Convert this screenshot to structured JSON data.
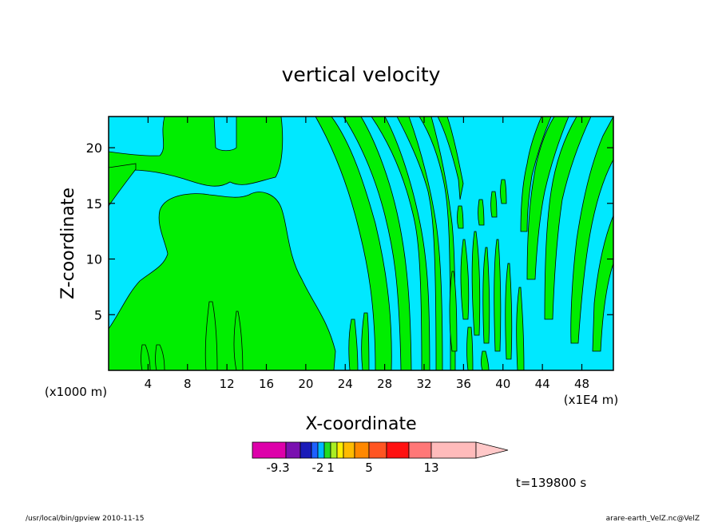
{
  "chart_data": {
    "type": "heatmap",
    "title": "vertical velocity",
    "xlabel": "X-coordinate",
    "ylabel": "Z-coordinate",
    "x_scale_label": "(x1E4 m)",
    "y_scale_label": "(x1000 m)",
    "xlim": [
      0,
      51.2
    ],
    "ylim": [
      0,
      22.8
    ],
    "x_ticks": [
      4,
      8,
      12,
      16,
      20,
      24,
      28,
      32,
      36,
      40,
      44,
      48
    ],
    "y_ticks": [
      5,
      10,
      15,
      20
    ],
    "time_label": "t=139800 s",
    "colorbar": {
      "colors": [
        "#dd00aa",
        "#7a10b0",
        "#1a1ab8",
        "#1e60ff",
        "#00b8ff",
        "#22dd22",
        "#aaee22",
        "#ffee00",
        "#ffbb00",
        "#ff8800",
        "#ff5522",
        "#ff1111",
        "#ff7777",
        "#ffbbbb",
        "#ffc8c8"
      ],
      "labels": [
        "-9.3",
        "-2",
        "1",
        "5",
        "13"
      ],
      "extend": "max"
    },
    "fill_colors": {
      "negative": "#00e8ff",
      "positive": "#00ee00"
    },
    "grid": false
  },
  "footer": {
    "left": "/usr/local/bin/gpview  2010-11-15",
    "right": "arare-earth_VelZ.nc@VelZ"
  }
}
